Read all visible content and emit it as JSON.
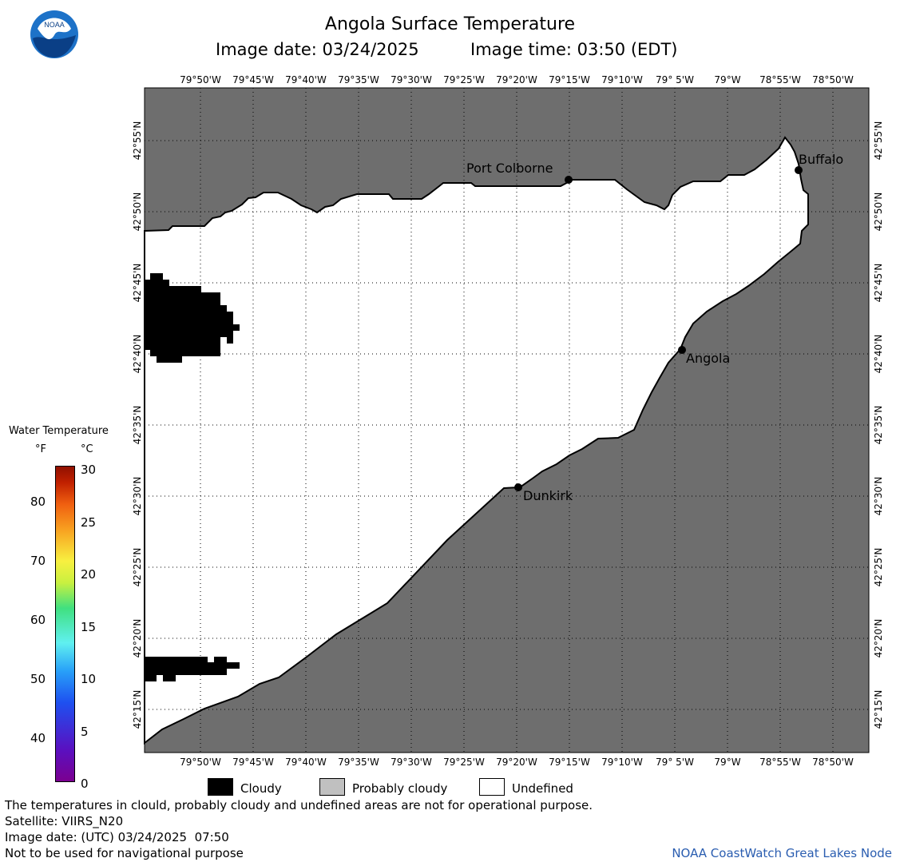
{
  "header": {
    "title": "Angola Surface Temperature",
    "image_date": "Image date: 03/24/2025",
    "image_time": "Image time: 03:50 (EDT)"
  },
  "logo": {
    "text": "NOAA",
    "icon": "noaa-logo-icon"
  },
  "axes": {
    "lon_labels": [
      "79°50'W",
      "79°45'W",
      "79°40'W",
      "79°35'W",
      "79°30'W",
      "79°25'W",
      "79°20'W",
      "79°15'W",
      "79°10'W",
      "79° 5'W",
      "79°W",
      "78°55'W",
      "78°50'W"
    ],
    "lat_labels": [
      "42°55'N",
      "42°50'N",
      "42°45'N",
      "42°40'N",
      "42°35'N",
      "42°30'N",
      "42°25'N",
      "42°20'N",
      "42°15'N"
    ]
  },
  "cities": [
    {
      "name": "Port Colborne"
    },
    {
      "name": "Buffalo"
    },
    {
      "name": "Angola"
    },
    {
      "name": "Dunkirk"
    }
  ],
  "colorbar": {
    "title": "Water Temperature",
    "unit_f": "°F",
    "unit_c": "°C",
    "f_ticks": [
      "80",
      "70",
      "60",
      "50",
      "40"
    ],
    "c_ticks": [
      "30",
      "25",
      "20",
      "15",
      "10",
      "5",
      "0"
    ]
  },
  "legend": {
    "cloudy": "Cloudy",
    "probably_cloudy": "Probably cloudy",
    "undefined": "Undefined",
    "colors": {
      "land": "#6e6e6e",
      "cloudy": "#000000",
      "probably_cloudy": "#c0c0c0",
      "undefined": "#ffffff"
    }
  },
  "footer": {
    "disclaimer": "The temperatures in clould, probably cloudy and undefined areas are not for operational purpose.",
    "satellite": "Satellite: VIIRS_N20",
    "utc_date": "Image date: (UTC) 03/24/2025  07:50",
    "nav_warning": "Not to be used for navigational purpose",
    "credit": "NOAA CoastWatch Great Lakes Node",
    "credit_color": "#2a5db0"
  }
}
